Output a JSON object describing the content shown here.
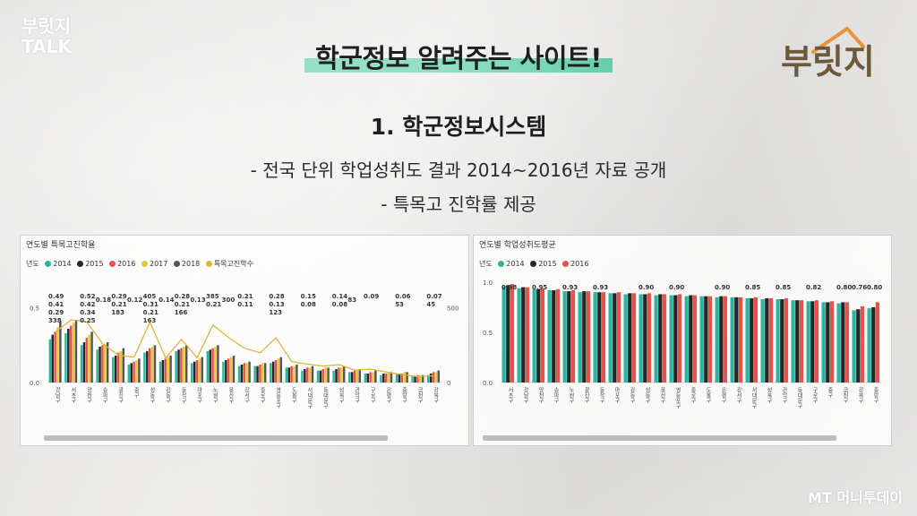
{
  "brand": {
    "line1": "부릿지",
    "line2": "TALK"
  },
  "logo_text": "부릿지",
  "title": "학군정보 알려주는 사이트!",
  "section": "1. 학군정보시스템",
  "bullet1": "- 전국 단위 학업성취도 결과 2014~2016년 자료 공개",
  "bullet2": "- 특목고 진학률 제공",
  "watermark": "MT 머니투데이",
  "colors": {
    "2014": "#2bb5a0",
    "2015": "#262626",
    "2016": "#e5534b",
    "2017": "#e8c63a",
    "2018": "#555555",
    "special": "#e0b43a"
  },
  "chart_data": [
    {
      "type": "bar",
      "title": "연도별 특목고진학율",
      "legend_label": "년도",
      "legend": [
        "2014",
        "2015",
        "2016",
        "2017",
        "2018",
        "특목고진학수"
      ],
      "ylim": [
        0,
        0.6
      ],
      "y_ticks": [
        "0.5",
        "0.0"
      ],
      "y2_ticks": [
        "500",
        "0"
      ],
      "y2lim": [
        0,
        600
      ],
      "categories": [
        "강남구",
        "서초구",
        "양천구",
        "송파구",
        "광진구",
        "중구",
        "성동구",
        "강동구",
        "동작구",
        "마포구",
        "노원구",
        "용산구",
        "강서구",
        "종로구",
        "영등포구",
        "도봉구",
        "서대문구",
        "동대문구",
        "성북구",
        "관악구",
        "구로구",
        "은평구",
        "중랑구",
        "금천구",
        "강북구"
      ],
      "labels": [
        {
          "v": "0.49",
          "i": 0
        },
        {
          "v": "0.41",
          "i": 0
        },
        {
          "v": "0.29",
          "i": 0
        },
        {
          "v": "338",
          "i": 0
        },
        {
          "v": "0.52",
          "i": 2
        },
        {
          "v": "0.42",
          "i": 2
        },
        {
          "v": "0.34",
          "i": 2
        },
        {
          "v": "0.25",
          "i": 2
        },
        {
          "v": "0.18",
          "i": 3
        },
        {
          "v": "405",
          "i": 6
        },
        {
          "v": "0.29",
          "i": 4
        },
        {
          "v": "0.21",
          "i": 4
        },
        {
          "v": "0.12",
          "i": 5
        },
        {
          "v": "183",
          "i": 4
        },
        {
          "v": "0.31",
          "i": 6
        },
        {
          "v": "0.21",
          "i": 6
        },
        {
          "v": "163",
          "i": 6
        },
        {
          "v": "0.28",
          "i": 8
        },
        {
          "v": "0.21",
          "i": 8
        },
        {
          "v": "0.14",
          "i": 7
        },
        {
          "v": "166",
          "i": 8
        },
        {
          "v": "385",
          "i": 10
        },
        {
          "v": "0.21",
          "i": 10
        },
        {
          "v": "0.13",
          "i": 9
        },
        {
          "v": "300",
          "i": 11
        },
        {
          "v": "0.21",
          "i": 12
        },
        {
          "v": "0.11",
          "i": 12
        },
        {
          "v": "0.28",
          "i": 14
        },
        {
          "v": "0.13",
          "i": 14
        },
        {
          "v": "123",
          "i": 14
        },
        {
          "v": "0.15",
          "i": 16
        },
        {
          "v": "0.08",
          "i": 16
        },
        {
          "v": "0.14",
          "i": 18
        },
        {
          "v": "0.08",
          "i": 18
        },
        {
          "v": "83",
          "i": 19
        },
        {
          "v": "0.09",
          "i": 20
        },
        {
          "v": "0.06",
          "i": 22
        },
        {
          "v": "53",
          "i": 22
        },
        {
          "v": "0.07",
          "i": 24
        },
        {
          "v": "45",
          "i": 24
        }
      ],
      "series": [
        {
          "name": "2014",
          "values": [
            0.29,
            0.33,
            0.25,
            0.22,
            0.17,
            0.12,
            0.2,
            0.14,
            0.21,
            0.13,
            0.21,
            0.14,
            0.11,
            0.11,
            0.13,
            0.1,
            0.08,
            0.08,
            0.08,
            0.07,
            0.06,
            0.05,
            0.06,
            0.04,
            0.05
          ]
        },
        {
          "name": "2015",
          "values": [
            0.32,
            0.36,
            0.27,
            0.24,
            0.18,
            0.13,
            0.21,
            0.15,
            0.22,
            0.14,
            0.22,
            0.15,
            0.12,
            0.11,
            0.14,
            0.1,
            0.09,
            0.08,
            0.09,
            0.07,
            0.06,
            0.06,
            0.06,
            0.04,
            0.06
          ]
        },
        {
          "name": "2016",
          "values": [
            0.34,
            0.38,
            0.3,
            0.25,
            0.2,
            0.14,
            0.23,
            0.16,
            0.23,
            0.15,
            0.23,
            0.16,
            0.13,
            0.12,
            0.15,
            0.11,
            0.1,
            0.09,
            0.1,
            0.08,
            0.07,
            0.06,
            0.06,
            0.05,
            0.07
          ]
        },
        {
          "name": "2017",
          "values": [
            0.37,
            0.4,
            0.32,
            0.26,
            0.21,
            0.15,
            0.24,
            0.17,
            0.24,
            0.16,
            0.24,
            0.17,
            0.13,
            0.13,
            0.16,
            0.11,
            0.1,
            0.1,
            0.1,
            0.08,
            0.07,
            0.07,
            0.07,
            0.05,
            0.07
          ]
        },
        {
          "name": "2018",
          "values": [
            0.41,
            0.42,
            0.34,
            0.27,
            0.23,
            0.16,
            0.25,
            0.18,
            0.25,
            0.17,
            0.25,
            0.18,
            0.14,
            0.13,
            0.17,
            0.12,
            0.11,
            0.1,
            0.11,
            0.09,
            0.08,
            0.07,
            0.07,
            0.05,
            0.08
          ]
        }
      ],
      "line": {
        "name": "특목고진학수",
        "values": [
          338,
          420,
          405,
          260,
          183,
          170,
          405,
          163,
          290,
          166,
          385,
          300,
          230,
          200,
          300,
          140,
          123,
          110,
          120,
          83,
          90,
          70,
          53,
          40,
          45
        ]
      }
    },
    {
      "type": "bar",
      "title": "연도별 학업성취도평균",
      "legend_label": "년도",
      "legend": [
        "2014",
        "2015",
        "2016"
      ],
      "ylim": [
        0,
        1.0
      ],
      "y_ticks": [
        "1.0",
        "0.5",
        "0.0"
      ],
      "categories": [
        "서초구",
        "강남구",
        "양천구",
        "송파구",
        "노원구",
        "광진구",
        "동작구",
        "마포구",
        "강동구",
        "성동구",
        "용산구",
        "영등포구",
        "종로구",
        "도봉구",
        "은평구",
        "강서구",
        "서대문구",
        "성북구",
        "관악구",
        "동대문구",
        "구로구",
        "중구",
        "금천구",
        "강북구",
        "중랑구"
      ],
      "labels": [
        {
          "v": "0.98",
          "i": 0
        },
        {
          "v": "0.95",
          "i": 2
        },
        {
          "v": "0.93",
          "i": 4
        },
        {
          "v": "0.93",
          "i": 6
        },
        {
          "v": "0.90",
          "i": 9
        },
        {
          "v": "0.90",
          "i": 11
        },
        {
          "v": "0.90",
          "i": 14
        },
        {
          "v": "0.85",
          "i": 16
        },
        {
          "v": "0.85",
          "i": 18
        },
        {
          "v": "0.82",
          "i": 20
        },
        {
          "v": "0.80",
          "i": 22
        },
        {
          "v": "0.76",
          "i": 23
        },
        {
          "v": "0.80",
          "i": 24
        }
      ],
      "series": [
        {
          "name": "2014",
          "values": [
            0.96,
            0.94,
            0.93,
            0.92,
            0.91,
            0.9,
            0.9,
            0.89,
            0.88,
            0.88,
            0.87,
            0.87,
            0.86,
            0.86,
            0.85,
            0.85,
            0.84,
            0.83,
            0.83,
            0.82,
            0.81,
            0.8,
            0.79,
            0.72,
            0.74
          ]
        },
        {
          "name": "2015",
          "values": [
            0.97,
            0.95,
            0.93,
            0.92,
            0.91,
            0.91,
            0.9,
            0.89,
            0.89,
            0.88,
            0.88,
            0.87,
            0.87,
            0.86,
            0.86,
            0.85,
            0.84,
            0.84,
            0.83,
            0.82,
            0.81,
            0.8,
            0.8,
            0.73,
            0.75
          ]
        },
        {
          "name": "2016",
          "values": [
            0.98,
            0.95,
            0.94,
            0.93,
            0.92,
            0.91,
            0.9,
            0.9,
            0.89,
            0.89,
            0.88,
            0.88,
            0.87,
            0.86,
            0.86,
            0.85,
            0.85,
            0.84,
            0.84,
            0.82,
            0.82,
            0.81,
            0.8,
            0.76,
            0.8
          ]
        }
      ]
    }
  ]
}
